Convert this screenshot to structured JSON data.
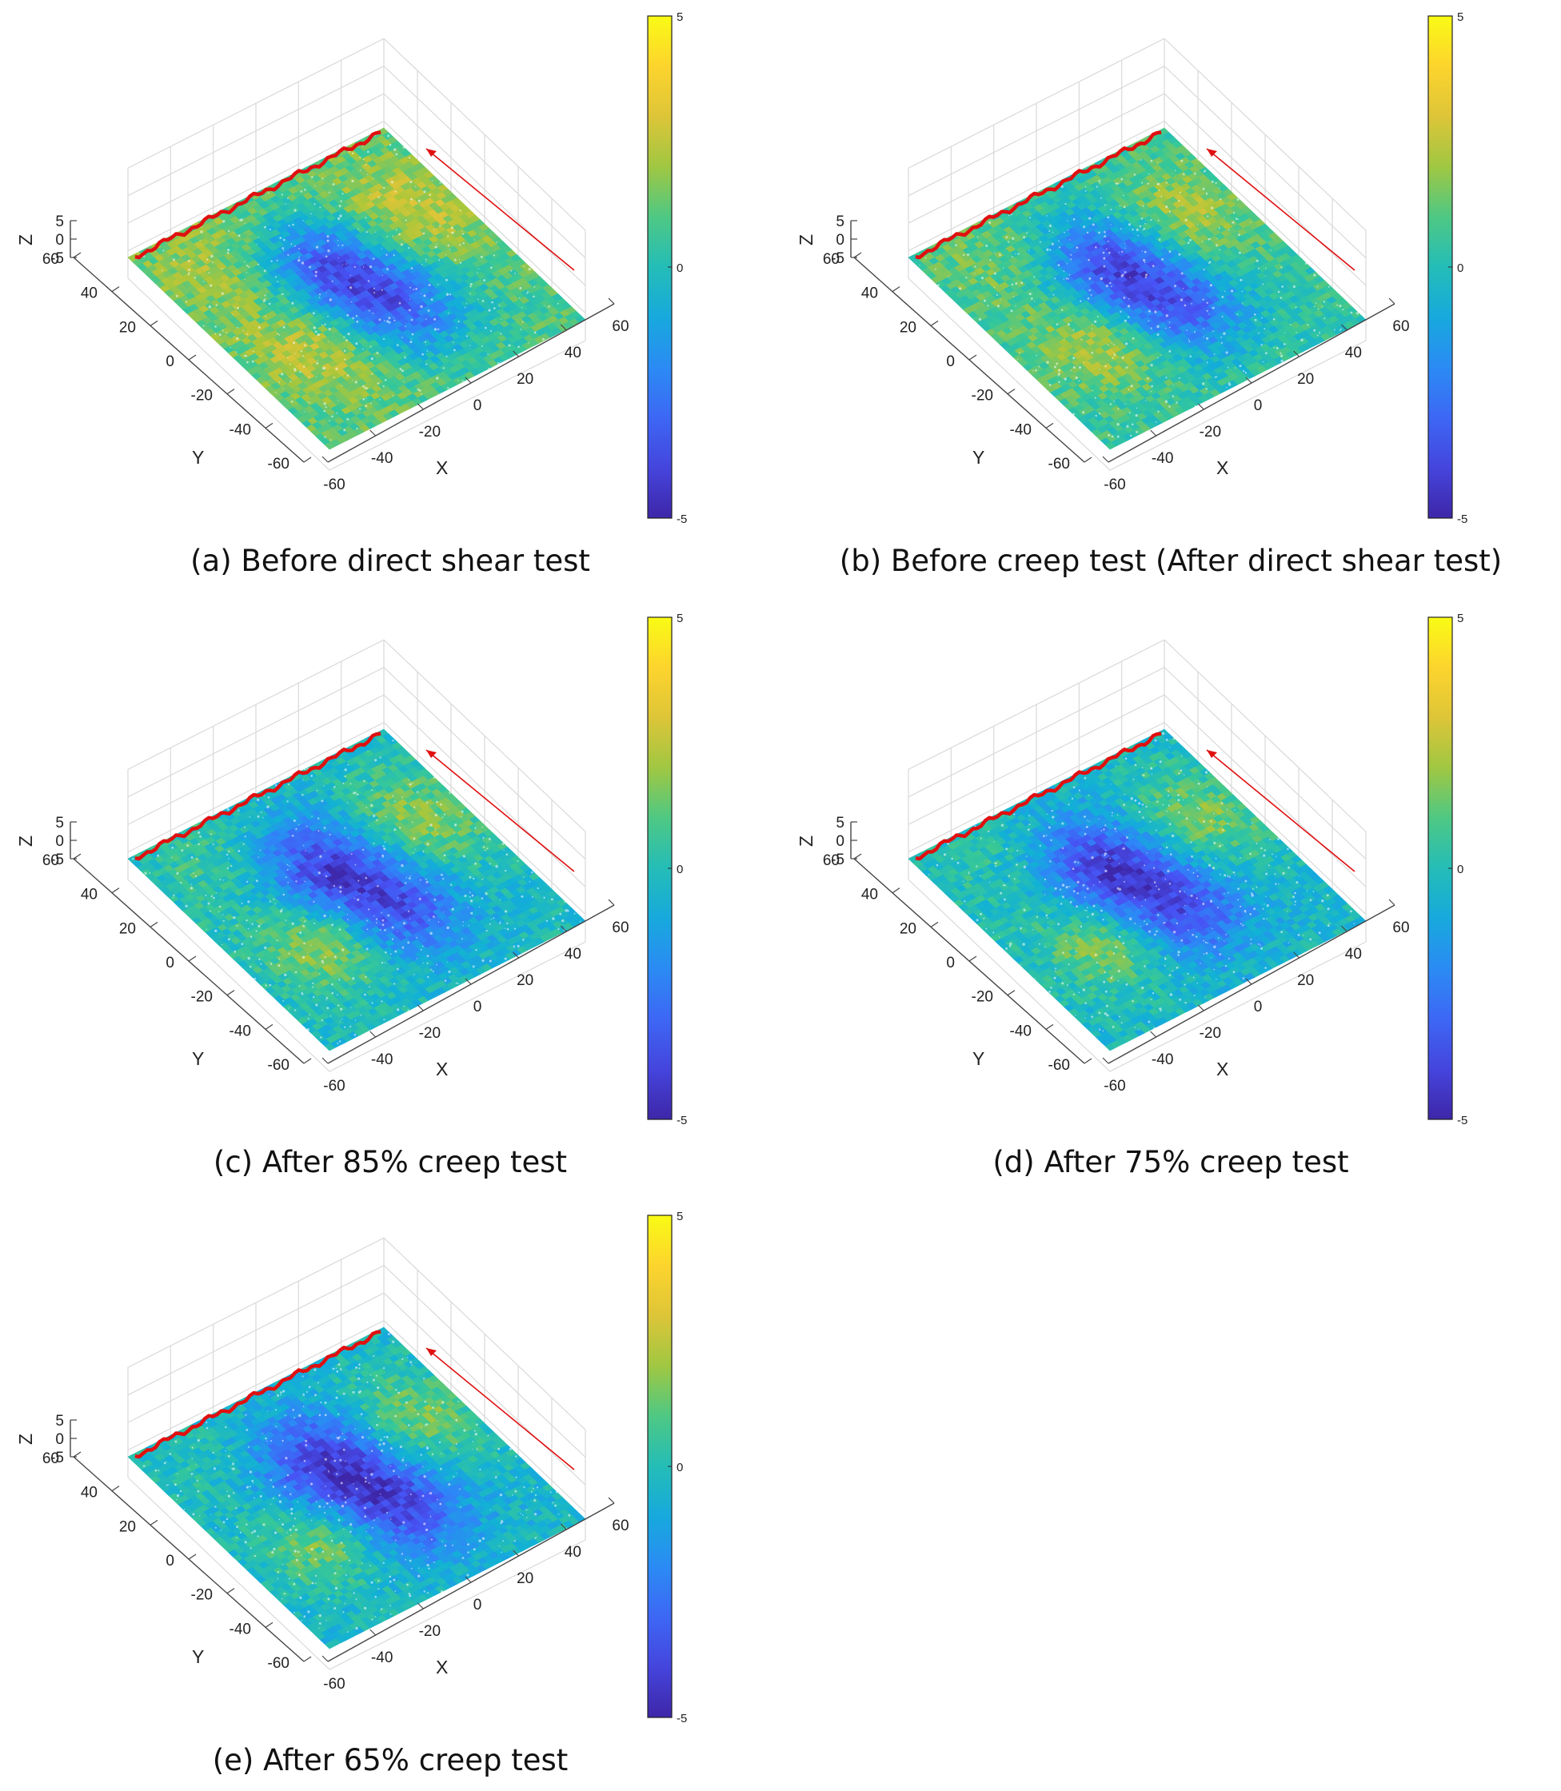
{
  "chart_data": [
    {
      "type": "surface",
      "caption": "(a) Before direct shear test",
      "xlabel": "X",
      "ylabel": "Y",
      "zlabel": "Z",
      "xlim": [
        -60,
        60
      ],
      "ylim": [
        -60,
        60
      ],
      "zlim": [
        -5,
        5
      ],
      "xticks": [
        "-60",
        "-40",
        "-20",
        "0",
        "20",
        "40",
        "60"
      ],
      "yticks": [
        "-60",
        "-40",
        "-20",
        "0",
        "20",
        "40",
        "60"
      ],
      "zticks": [
        "-5",
        "0",
        "5"
      ],
      "colorbar": {
        "min": -5,
        "max": 5,
        "ticks": [
          "-5",
          "0",
          "5"
        ]
      },
      "colormap": "parula",
      "features": [
        {
          "u": 0.35,
          "v": 0.78,
          "z": 3.0,
          "r": 0.18
        },
        {
          "u": 0.62,
          "v": 0.3,
          "z": 3.2,
          "r": 0.16
        },
        {
          "u": 0.5,
          "v": 0.52,
          "z": -3.5,
          "r": 0.16
        },
        {
          "u": 0.18,
          "v": 0.25,
          "z": 2.2,
          "r": 0.18
        },
        {
          "u": 0.8,
          "v": 0.7,
          "z": 0.8,
          "r": 0.2
        },
        {
          "u": 0.3,
          "v": 0.48,
          "z": -1.8,
          "r": 0.14
        },
        {
          "u": 0.7,
          "v": 0.55,
          "z": -1.2,
          "r": 0.14
        }
      ],
      "base_level": 1.0
    },
    {
      "type": "surface",
      "caption": "(b) Before creep test (After direct shear test)",
      "xlabel": "X",
      "ylabel": "Y",
      "zlabel": "Z",
      "xlim": [
        -60,
        60
      ],
      "ylim": [
        -60,
        60
      ],
      "zlim": [
        -5,
        5
      ],
      "xticks": [
        "-60",
        "-40",
        "-20",
        "0",
        "20",
        "40",
        "60"
      ],
      "yticks": [
        "-60",
        "-40",
        "-20",
        "0",
        "20",
        "40",
        "60"
      ],
      "zticks": [
        "-5",
        "0",
        "5"
      ],
      "colorbar": {
        "min": -5,
        "max": 5,
        "ticks": [
          "-5",
          "0",
          "5"
        ]
      },
      "colormap": "parula",
      "features": [
        {
          "u": 0.35,
          "v": 0.78,
          "z": 2.6,
          "r": 0.16
        },
        {
          "u": 0.62,
          "v": 0.3,
          "z": 3.0,
          "r": 0.15
        },
        {
          "u": 0.5,
          "v": 0.52,
          "z": -3.6,
          "r": 0.16
        },
        {
          "u": 0.18,
          "v": 0.25,
          "z": 1.6,
          "r": 0.18
        },
        {
          "u": 0.8,
          "v": 0.7,
          "z": 0.4,
          "r": 0.2
        },
        {
          "u": 0.3,
          "v": 0.48,
          "z": -2.2,
          "r": 0.14
        },
        {
          "u": 0.7,
          "v": 0.55,
          "z": -1.5,
          "r": 0.14
        }
      ],
      "base_level": 0.5
    },
    {
      "type": "surface",
      "caption": "(c) After 85% creep test",
      "xlabel": "X",
      "ylabel": "Y",
      "zlabel": "Z",
      "xlim": [
        -60,
        60
      ],
      "ylim": [
        -60,
        60
      ],
      "zlim": [
        -5,
        5
      ],
      "xticks": [
        "-60",
        "-40",
        "-20",
        "0",
        "20",
        "40",
        "60"
      ],
      "yticks": [
        "-60",
        "-40",
        "-20",
        "0",
        "20",
        "40",
        "60"
      ],
      "zticks": [
        "-5",
        "0",
        "5"
      ],
      "colorbar": {
        "min": -5,
        "max": 5,
        "ticks": [
          "-5",
          "0",
          "5"
        ]
      },
      "colormap": "parula",
      "features": [
        {
          "u": 0.38,
          "v": 0.8,
          "z": 2.3,
          "r": 0.16
        },
        {
          "u": 0.62,
          "v": 0.3,
          "z": 2.8,
          "r": 0.14
        },
        {
          "u": 0.5,
          "v": 0.52,
          "z": -3.8,
          "r": 0.17
        },
        {
          "u": 0.18,
          "v": 0.25,
          "z": 0.8,
          "r": 0.18
        },
        {
          "u": 0.8,
          "v": 0.7,
          "z": -0.2,
          "r": 0.2
        },
        {
          "u": 0.3,
          "v": 0.48,
          "z": -2.5,
          "r": 0.15
        },
        {
          "u": 0.7,
          "v": 0.55,
          "z": -2.0,
          "r": 0.14
        }
      ],
      "base_level": -0.2
    },
    {
      "type": "surface",
      "caption": "(d) After 75% creep test",
      "xlabel": "X",
      "ylabel": "Y",
      "zlabel": "Z",
      "xlim": [
        -60,
        60
      ],
      "ylim": [
        -60,
        60
      ],
      "zlim": [
        -5,
        5
      ],
      "xticks": [
        "-60",
        "-40",
        "-20",
        "0",
        "20",
        "40",
        "60"
      ],
      "yticks": [
        "-60",
        "-40",
        "-20",
        "0",
        "20",
        "40",
        "60"
      ],
      "zticks": [
        "-5",
        "0",
        "5"
      ],
      "colorbar": {
        "min": -5,
        "max": 5,
        "ticks": [
          "-5",
          "0",
          "5"
        ]
      },
      "colormap": "parula",
      "features": [
        {
          "u": 0.38,
          "v": 0.8,
          "z": 2.1,
          "r": 0.16
        },
        {
          "u": 0.62,
          "v": 0.3,
          "z": 2.6,
          "r": 0.14
        },
        {
          "u": 0.5,
          "v": 0.52,
          "z": -3.9,
          "r": 0.17
        },
        {
          "u": 0.18,
          "v": 0.25,
          "z": 0.5,
          "r": 0.18
        },
        {
          "u": 0.8,
          "v": 0.7,
          "z": -0.3,
          "r": 0.2
        },
        {
          "u": 0.3,
          "v": 0.48,
          "z": -2.6,
          "r": 0.15
        },
        {
          "u": 0.7,
          "v": 0.55,
          "z": -2.2,
          "r": 0.14
        }
      ],
      "base_level": -0.3
    },
    {
      "type": "surface",
      "caption": "(e) After 65% creep test",
      "xlabel": "X",
      "ylabel": "Y",
      "zlabel": "Z",
      "xlim": [
        -60,
        60
      ],
      "ylim": [
        -60,
        60
      ],
      "zlim": [
        -5,
        5
      ],
      "xticks": [
        "-60",
        "-40",
        "-20",
        "0",
        "20",
        "40",
        "60"
      ],
      "yticks": [
        "-60",
        "-40",
        "-20",
        "0",
        "20",
        "40",
        "60"
      ],
      "zticks": [
        "-5",
        "0",
        "5"
      ],
      "colorbar": {
        "min": -5,
        "max": 5,
        "ticks": [
          "-5",
          "0",
          "5"
        ]
      },
      "colormap": "parula",
      "features": [
        {
          "u": 0.38,
          "v": 0.8,
          "z": 2.0,
          "r": 0.16
        },
        {
          "u": 0.62,
          "v": 0.3,
          "z": 2.4,
          "r": 0.14
        },
        {
          "u": 0.5,
          "v": 0.52,
          "z": -4.0,
          "r": 0.17
        },
        {
          "u": 0.18,
          "v": 0.25,
          "z": 0.3,
          "r": 0.18
        },
        {
          "u": 0.8,
          "v": 0.7,
          "z": -0.4,
          "r": 0.2
        },
        {
          "u": 0.3,
          "v": 0.48,
          "z": -2.8,
          "r": 0.15
        },
        {
          "u": 0.7,
          "v": 0.55,
          "z": -2.3,
          "r": 0.14
        }
      ],
      "base_level": -0.4
    }
  ]
}
